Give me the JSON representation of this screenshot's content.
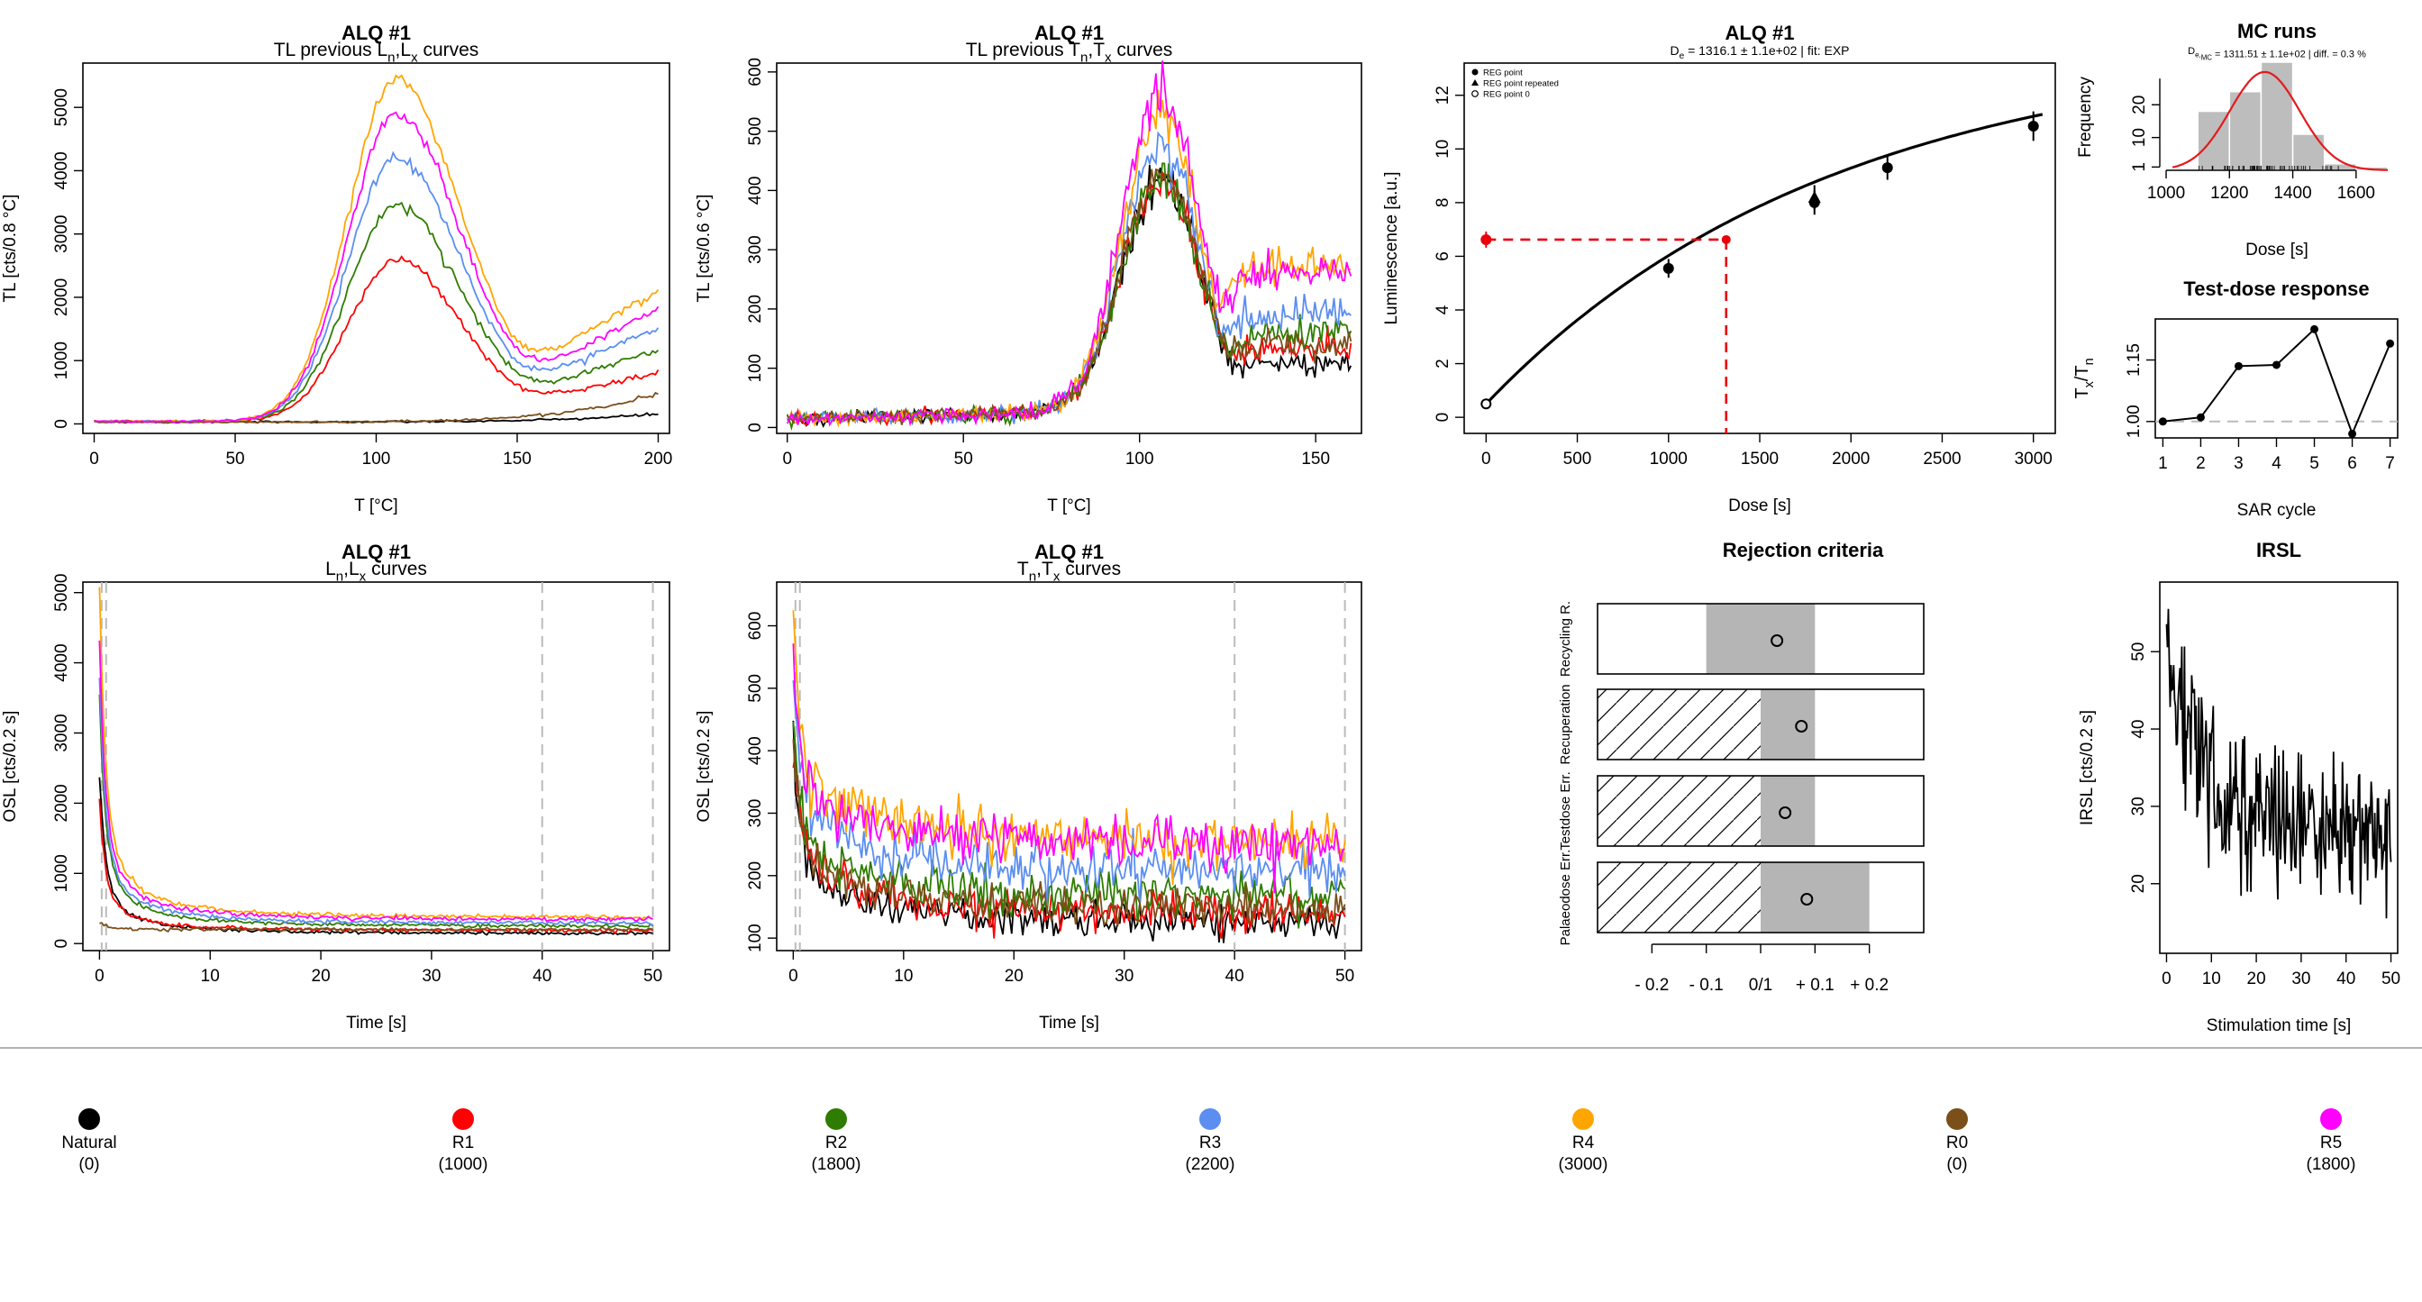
{
  "colors": {
    "natural": "#000000",
    "r1": "#ff0000",
    "r2": "#2e7d00",
    "r3": "#5b8ef0",
    "r4": "#ffa500",
    "r0": "#7a4f1a",
    "r5": "#ff00ff",
    "grid_dash": "#bbbbbb",
    "fit_dashed": "#e8000b",
    "hist_bar": "#bdbdbd",
    "hist_density": "#e41a1c"
  },
  "panels": {
    "tl_lnlx": {
      "title": "ALQ #1",
      "subtitle_a": "TL previous L",
      "subtitle_sub1": "n",
      "subtitle_b": ",L",
      "subtitle_sub2": "x",
      "subtitle_c": " curves",
      "xlabel": "T [°C]",
      "ylabel": "TL [cts/0.8 °C]"
    },
    "tl_tntx": {
      "title": "ALQ #1",
      "subtitle_a": "TL previous T",
      "subtitle_sub1": "n",
      "subtitle_b": ",T",
      "subtitle_sub2": "x",
      "subtitle_c": " curves",
      "xlabel": "T [°C]",
      "ylabel": "TL [cts/0.6 °C]"
    },
    "growth": {
      "title": "ALQ #1",
      "subtitle_a": "D",
      "subtitle_sub": "e",
      "subtitle_b": " = 1316.1 ± 1.1e+02  | fit:  EXP",
      "xlabel": "Dose [s]",
      "ylabel": "Luminescence [a.u.]",
      "legend": [
        "REG point",
        "REG point repeated",
        "REG point 0"
      ]
    },
    "mc": {
      "title": "MC runs",
      "subtitle_a": "D",
      "subtitle_sub": "e,",
      "subtitle_sub2": "MC",
      "subtitle_b": " = 1311.51 ± 1.1e+02  | diff. =  0.3 %",
      "xlabel": "Dose [s]",
      "ylabel": "Frequency"
    },
    "testdose": {
      "title": "Test-dose response",
      "xlabel": "SAR cycle",
      "ylabel_a": "T",
      "ylabel_sub1": "x",
      "ylabel_b": "/T",
      "ylabel_sub2": "n"
    },
    "osl_lnlx": {
      "title": "ALQ #1",
      "subtitle_a": "L",
      "subtitle_sub1": "n",
      "subtitle_b": ",L",
      "subtitle_sub2": "x",
      "subtitle_c": " curves",
      "xlabel": "Time [s]",
      "ylabel": "OSL [cts/0.2 s]"
    },
    "osl_tntx": {
      "title": "ALQ #1",
      "subtitle_a": "T",
      "subtitle_sub1": "n",
      "subtitle_b": ",T",
      "subtitle_sub2": "x",
      "subtitle_c": " curves",
      "xlabel": "Time [s]",
      "ylabel": "OSL [cts/0.2 s]"
    },
    "rejection": {
      "title": "Rejection criteria",
      "rows": [
        "Recycling R.",
        "Recuperation",
        "Testdose Err.",
        "Palaeodose Err."
      ],
      "ticks": [
        "- 0.2",
        "- 0.1",
        "0/1",
        "+ 0.1",
        "+ 0.2"
      ]
    },
    "irsl": {
      "title": "IRSL",
      "xlabel": "Stimulation time [s]",
      "ylabel": "IRSL [cts/0.2 s]"
    }
  },
  "legend": [
    {
      "name": "Natural",
      "dose": "(0)",
      "color": "#000000"
    },
    {
      "name": "R1",
      "dose": "(1000)",
      "color": "#ff0000"
    },
    {
      "name": "R2",
      "dose": "(1800)",
      "color": "#2e7d00"
    },
    {
      "name": "R3",
      "dose": "(2200)",
      "color": "#5b8ef0"
    },
    {
      "name": "R4",
      "dose": "(3000)",
      "color": "#ffa500"
    },
    {
      "name": "R0",
      "dose": "(0)",
      "color": "#7a4f1a"
    },
    {
      "name": "R5",
      "dose": "(1800)",
      "color": "#ff00ff"
    }
  ],
  "chart_data": [
    {
      "id": "tl_lnlx",
      "type": "line",
      "xlim": [
        -4,
        204
      ],
      "ylim": [
        -150,
        5700
      ],
      "xticks": [
        0,
        50,
        100,
        150,
        200
      ],
      "yticks": [
        0,
        1000,
        2000,
        3000,
        4000,
        5000
      ],
      "series": [
        {
          "name": "Natural",
          "peak": 0,
          "base": 30,
          "tail": 160
        },
        {
          "name": "R1",
          "peak": 2550,
          "base": 40,
          "tail": 780
        },
        {
          "name": "R2",
          "peak": 3400,
          "base": 40,
          "tail": 1150
        },
        {
          "name": "R3",
          "peak": 4150,
          "base": 40,
          "tail": 1500
        },
        {
          "name": "R4",
          "peak": 5400,
          "base": 40,
          "tail": 2100
        },
        {
          "name": "R0",
          "peak": 0,
          "base": 30,
          "tail": 480
        },
        {
          "name": "R5",
          "peak": 4850,
          "base": 40,
          "tail": 1800
        }
      ]
    },
    {
      "id": "tl_tntx",
      "type": "line",
      "xlim": [
        -3,
        163
      ],
      "ylim": [
        -10,
        615
      ],
      "xticks": [
        0,
        50,
        100,
        150
      ],
      "yticks": [
        0,
        100,
        200,
        300,
        400,
        500,
        600
      ],
      "series": [
        {
          "name": "Natural",
          "peak": 420,
          "tail": 80
        },
        {
          "name": "R1",
          "peak": 410,
          "tail": 110
        },
        {
          "name": "R2",
          "peak": 415,
          "tail": 140
        },
        {
          "name": "R3",
          "peak": 470,
          "tail": 175
        },
        {
          "name": "R4",
          "peak": 520,
          "tail": 265
        },
        {
          "name": "R0",
          "peak": 425,
          "tail": 120
        },
        {
          "name": "R5",
          "peak": 560,
          "tail": 255
        }
      ]
    },
    {
      "id": "growth",
      "type": "scatter",
      "xlim": [
        -120,
        3120
      ],
      "ylim": [
        -0.6,
        13.2
      ],
      "xticks": [
        0,
        500,
        1000,
        1500,
        2000,
        2500,
        3000
      ],
      "yticks": [
        0,
        2,
        4,
        6,
        8,
        10,
        12
      ],
      "points": [
        {
          "x": 1000,
          "y": 5.55,
          "err": 0.35
        },
        {
          "x": 1800,
          "y": 8.0,
          "err": 0.45
        },
        {
          "x": 2200,
          "y": 9.3,
          "err": 0.45
        },
        {
          "x": 3000,
          "y": 10.85,
          "err": 0.55
        },
        {
          "x": 1800,
          "y": 8.2,
          "err": 0.45,
          "repeated": true
        }
      ],
      "point0": {
        "x": 0,
        "y": 0.5
      },
      "natural": {
        "x": 0,
        "y": 6.62,
        "err": 0.3
      },
      "de": 1316.1
    },
    {
      "id": "mc",
      "type": "bar",
      "xlim": [
        980,
        1720
      ],
      "ylim": [
        0,
        33
      ],
      "xticks": [
        1000,
        1200,
        1400,
        1600
      ],
      "yticks": [
        1,
        10,
        20
      ],
      "bins": [
        {
          "x0": 1100,
          "x1": 1200,
          "v": 18
        },
        {
          "x0": 1200,
          "x1": 1300,
          "v": 24
        },
        {
          "x0": 1300,
          "x1": 1400,
          "v": 33
        },
        {
          "x0": 1400,
          "x1": 1500,
          "v": 11
        },
        {
          "x0": 1500,
          "x1": 1600,
          "v": 2
        },
        {
          "x0": 1600,
          "x1": 1700,
          "v": 1
        }
      ],
      "density_mean": 1311.51,
      "density_sd": 110,
      "density_peak": 30
    },
    {
      "id": "testdose",
      "type": "line",
      "xlim": [
        0.8,
        7.2
      ],
      "ylim": [
        0.96,
        1.25
      ],
      "xticks": [
        1,
        2,
        3,
        4,
        5,
        6,
        7
      ],
      "yticks": [
        1.0,
        1.15
      ],
      "ytick_labels": [
        "1.00",
        "1.15"
      ],
      "x": [
        1,
        2,
        3,
        4,
        5,
        6,
        7
      ],
      "y": [
        1.0,
        1.01,
        1.135,
        1.138,
        1.225,
        0.97,
        1.19
      ],
      "ref": 1.0
    },
    {
      "id": "osl_lnlx",
      "type": "line",
      "xlim": [
        -1.5,
        51.5
      ],
      "ylim": [
        -100,
        5150
      ],
      "xticks": [
        0,
        10,
        20,
        30,
        40,
        50
      ],
      "yticks": [
        0,
        1000,
        2000,
        3000,
        4000,
        5000
      ],
      "vlines": [
        0.2,
        0.6,
        40,
        50
      ],
      "series": [
        {
          "name": "Natural",
          "y0": 2450,
          "tail": 140
        },
        {
          "name": "R1",
          "y0": 2050,
          "tail": 180
        },
        {
          "name": "R2",
          "y0": 3550,
          "tail": 240
        },
        {
          "name": "R3",
          "y0": 3800,
          "tail": 280
        },
        {
          "name": "R4",
          "y0": 5050,
          "tail": 360
        },
        {
          "name": "R0",
          "y0": 300,
          "tail": 200
        },
        {
          "name": "R5",
          "y0": 4350,
          "tail": 330
        }
      ]
    },
    {
      "id": "osl_tntx",
      "type": "line",
      "xlim": [
        -1.5,
        51.5
      ],
      "ylim": [
        80,
        670
      ],
      "xticks": [
        0,
        10,
        20,
        30,
        40,
        50
      ],
      "yticks": [
        100,
        200,
        300,
        400,
        500,
        600
      ],
      "vlines": [
        0.2,
        0.6,
        40,
        50
      ],
      "series": [
        {
          "name": "Natural",
          "y0": 420,
          "tail": 120
        },
        {
          "name": "R1",
          "y0": 430,
          "tail": 135
        },
        {
          "name": "R2",
          "y0": 450,
          "tail": 165
        },
        {
          "name": "R3",
          "y0": 530,
          "tail": 205
        },
        {
          "name": "R4",
          "y0": 640,
          "tail": 250
        },
        {
          "name": "R0",
          "y0": 430,
          "tail": 145
        },
        {
          "name": "R5",
          "y0": 560,
          "tail": 245
        }
      ]
    },
    {
      "id": "rejection",
      "type": "bar",
      "xlim": [
        -0.3,
        0.3
      ],
      "rows": [
        {
          "name": "Recycling R.",
          "lo": -0.1,
          "hi": 0.1,
          "val": 0.03,
          "hatch": false
        },
        {
          "name": "Recuperation",
          "lo": 0,
          "hi": 0.1,
          "val": 0.075,
          "hatch": true
        },
        {
          "name": "Testdose Err.",
          "lo": 0,
          "hi": 0.1,
          "val": 0.045,
          "hatch": true
        },
        {
          "name": "Palaeodose Err.",
          "lo": 0,
          "hi": 0.2,
          "val": 0.085,
          "hatch": true
        }
      ]
    },
    {
      "id": "irsl",
      "type": "line",
      "xlim": [
        -1.5,
        51.5
      ],
      "ylim": [
        11,
        59
      ],
      "xticks": [
        0,
        10,
        20,
        30,
        40,
        50
      ],
      "yticks": [
        20,
        30,
        40,
        50
      ],
      "start": 52,
      "tail": 27,
      "peak_max": 57,
      "min": 13
    }
  ]
}
